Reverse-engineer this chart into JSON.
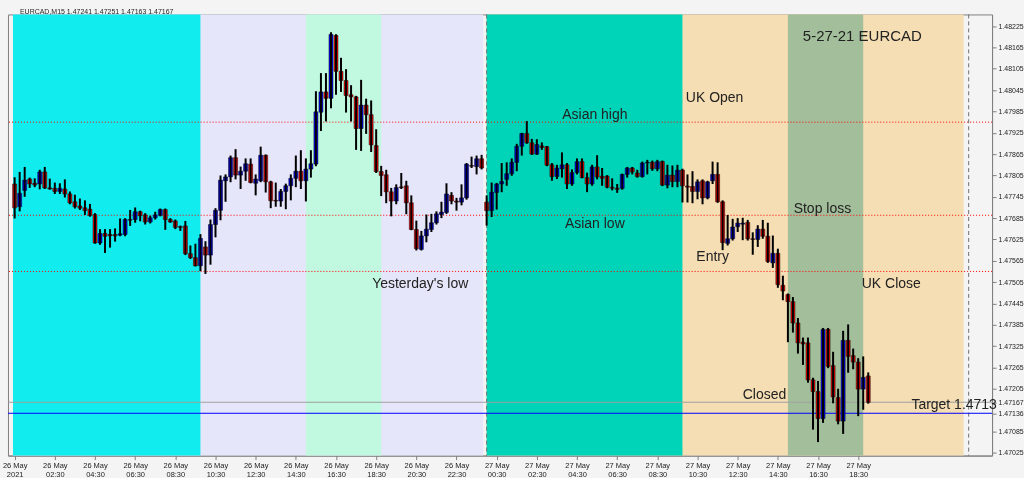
{
  "chart_data": {
    "type": "candlestick",
    "title": "5-27-21  EURCAD",
    "subtitle": "EURCAD,M15  1.47241 1.47251 1.47163 1.47167",
    "x": [
      "2021-05-26T00:30",
      "2021-05-26T00:45",
      "2021-05-26T01:00",
      "2021-05-26T01:15",
      "2021-05-26T01:30",
      "2021-05-26T01:45",
      "2021-05-26T02:00",
      "2021-05-26T02:15",
      "2021-05-26T02:30",
      "2021-05-26T02:45",
      "2021-05-26T03:00",
      "2021-05-26T03:15",
      "2021-05-26T03:30",
      "2021-05-26T03:45",
      "2021-05-26T04:00",
      "2021-05-26T04:15",
      "2021-05-26T04:30",
      "2021-05-26T04:45",
      "2021-05-26T05:00",
      "2021-05-26T05:15",
      "2021-05-26T05:30",
      "2021-05-26T05:45",
      "2021-05-26T06:00",
      "2021-05-26T06:15",
      "2021-05-26T06:30",
      "2021-05-26T06:45",
      "2021-05-26T07:00",
      "2021-05-26T07:15",
      "2021-05-26T07:30",
      "2021-05-26T07:45",
      "2021-05-26T08:00",
      "2021-05-26T08:15",
      "2021-05-26T08:30",
      "2021-05-26T08:45",
      "2021-05-26T09:00",
      "2021-05-26T09:15",
      "2021-05-26T09:30",
      "2021-05-26T09:45",
      "2021-05-26T10:00",
      "2021-05-26T10:15",
      "2021-05-26T10:30",
      "2021-05-26T10:45",
      "2021-05-26T11:00",
      "2021-05-26T11:15",
      "2021-05-26T11:30",
      "2021-05-26T11:45",
      "2021-05-26T12:00",
      "2021-05-26T12:15",
      "2021-05-26T12:30",
      "2021-05-26T12:45",
      "2021-05-26T13:00",
      "2021-05-26T13:15",
      "2021-05-26T13:30",
      "2021-05-26T13:45",
      "2021-05-26T14:00",
      "2021-05-26T14:15",
      "2021-05-26T14:30",
      "2021-05-26T14:45",
      "2021-05-26T15:00",
      "2021-05-26T15:15",
      "2021-05-26T15:30",
      "2021-05-26T15:45",
      "2021-05-26T16:00",
      "2021-05-26T16:15",
      "2021-05-26T16:30",
      "2021-05-26T16:45",
      "2021-05-26T17:00",
      "2021-05-26T17:15",
      "2021-05-26T17:30",
      "2021-05-26T17:45",
      "2021-05-26T18:00",
      "2021-05-26T18:15",
      "2021-05-26T18:30",
      "2021-05-26T18:45",
      "2021-05-26T19:00",
      "2021-05-26T19:15",
      "2021-05-26T19:30",
      "2021-05-26T19:45",
      "2021-05-26T20:00",
      "2021-05-26T20:15",
      "2021-05-26T20:30",
      "2021-05-26T20:45",
      "2021-05-26T21:00",
      "2021-05-26T21:15",
      "2021-05-26T21:30",
      "2021-05-26T21:45",
      "2021-05-26T22:00",
      "2021-05-26T22:15",
      "2021-05-26T22:30",
      "2021-05-26T22:45",
      "2021-05-26T23:00",
      "2021-05-26T23:15",
      "2021-05-26T23:30",
      "2021-05-26T23:45",
      "2021-05-27T00:00",
      "2021-05-27T00:15",
      "2021-05-27T00:30",
      "2021-05-27T00:45",
      "2021-05-27T01:00",
      "2021-05-27T01:15",
      "2021-05-27T01:30",
      "2021-05-27T01:45",
      "2021-05-27T02:00",
      "2021-05-27T02:15",
      "2021-05-27T02:30",
      "2021-05-27T02:45",
      "2021-05-27T03:00",
      "2021-05-27T03:15",
      "2021-05-27T03:30",
      "2021-05-27T03:45",
      "2021-05-27T04:00",
      "2021-05-27T04:15",
      "2021-05-27T04:30",
      "2021-05-27T04:45",
      "2021-05-27T05:00",
      "2021-05-27T05:15",
      "2021-05-27T05:30",
      "2021-05-27T05:45",
      "2021-05-27T06:00",
      "2021-05-27T06:15",
      "2021-05-27T06:30",
      "2021-05-27T06:45",
      "2021-05-27T07:00",
      "2021-05-27T07:15",
      "2021-05-27T07:30",
      "2021-05-27T07:45",
      "2021-05-27T08:00",
      "2021-05-27T08:15",
      "2021-05-27T08:30",
      "2021-05-27T08:45",
      "2021-05-27T09:00",
      "2021-05-27T09:15",
      "2021-05-27T09:30",
      "2021-05-27T09:45",
      "2021-05-27T10:00",
      "2021-05-27T10:15",
      "2021-05-27T10:30",
      "2021-05-27T10:45",
      "2021-05-27T11:00",
      "2021-05-27T11:15",
      "2021-05-27T11:30",
      "2021-05-27T11:45",
      "2021-05-27T12:00",
      "2021-05-27T12:15",
      "2021-05-27T12:30",
      "2021-05-27T12:45",
      "2021-05-27T13:00",
      "2021-05-27T13:15",
      "2021-05-27T13:30",
      "2021-05-27T13:45",
      "2021-05-27T14:00",
      "2021-05-27T14:15",
      "2021-05-27T14:30",
      "2021-05-27T14:45",
      "2021-05-27T15:00",
      "2021-05-27T15:15",
      "2021-05-27T15:30",
      "2021-05-27T15:45",
      "2021-05-27T16:00",
      "2021-05-27T16:15",
      "2021-05-27T16:30",
      "2021-05-27T16:45",
      "2021-05-27T17:00",
      "2021-05-27T17:15",
      "2021-05-27T17:30",
      "2021-05-27T17:45",
      "2021-05-27T18:00",
      "2021-05-27T18:15",
      "2021-05-27T18:30",
      "2021-05-27T18:45",
      "2021-05-27T19:00"
    ],
    "ohlc": [
      [
        1.47781,
        1.478,
        1.47684,
        1.47714
      ],
      [
        1.47717,
        1.47815,
        1.47704,
        1.47755
      ],
      [
        1.47763,
        1.47829,
        1.47745,
        1.47792
      ],
      [
        1.47795,
        1.47799,
        1.4777,
        1.47781
      ],
      [
        1.47783,
        1.47797,
        1.47772,
        1.47778
      ],
      [
        1.47781,
        1.47821,
        1.47766,
        1.47815
      ],
      [
        1.47815,
        1.47829,
        1.47767,
        1.4777
      ],
      [
        1.4777,
        1.47796,
        1.47765,
        1.47767
      ],
      [
        1.47769,
        1.47785,
        1.47753,
        1.4776
      ],
      [
        1.4776,
        1.47783,
        1.47753,
        1.47769
      ],
      [
        1.47767,
        1.47794,
        1.47743,
        1.47753
      ],
      [
        1.47753,
        1.4776,
        1.47724,
        1.47728
      ],
      [
        1.47731,
        1.47751,
        1.47712,
        1.47717
      ],
      [
        1.47719,
        1.4774,
        1.47708,
        1.47713
      ],
      [
        1.47714,
        1.47735,
        1.47694,
        1.47706
      ],
      [
        1.4771,
        1.47725,
        1.47689,
        1.47692
      ],
      [
        1.47695,
        1.47699,
        1.47613,
        1.47615
      ],
      [
        1.47615,
        1.47654,
        1.4761,
        1.47642
      ],
      [
        1.47642,
        1.47654,
        1.47587,
        1.47634
      ],
      [
        1.47639,
        1.47654,
        1.47602,
        1.47635
      ],
      [
        1.47639,
        1.47656,
        1.47619,
        1.47635
      ],
      [
        1.47637,
        1.47684,
        1.47634,
        1.47641
      ],
      [
        1.47639,
        1.47685,
        1.47634,
        1.47681
      ],
      [
        1.47681,
        1.47708,
        1.47663,
        1.47679
      ],
      [
        1.47681,
        1.47715,
        1.47672,
        1.47703
      ],
      [
        1.47703,
        1.47706,
        1.47676,
        1.47692
      ],
      [
        1.47694,
        1.47699,
        1.47667,
        1.47674
      ],
      [
        1.47674,
        1.47692,
        1.4767,
        1.47686
      ],
      [
        1.47686,
        1.47703,
        1.47681,
        1.47694
      ],
      [
        1.47693,
        1.47712,
        1.4769,
        1.47709
      ],
      [
        1.47709,
        1.47712,
        1.47652,
        1.47681
      ],
      [
        1.47681,
        1.47685,
        1.47672,
        1.47674
      ],
      [
        1.47677,
        1.47681,
        1.47654,
        1.47659
      ],
      [
        1.47661,
        1.47664,
        1.47649,
        1.47659
      ],
      [
        1.47663,
        1.47677,
        1.47581,
        1.47585
      ],
      [
        1.47585,
        1.47608,
        1.4757,
        1.47574
      ],
      [
        1.47574,
        1.47613,
        1.47549,
        1.47551
      ],
      [
        1.47551,
        1.4764,
        1.47536,
        1.47628
      ],
      [
        1.47604,
        1.4762,
        1.47528,
        1.47581
      ],
      [
        1.47581,
        1.47681,
        1.47554,
        1.47667
      ],
      [
        1.47667,
        1.47713,
        1.47631,
        1.47707
      ],
      [
        1.47707,
        1.47805,
        1.47679,
        1.47792
      ],
      [
        1.4779,
        1.47808,
        1.47731,
        1.47801
      ],
      [
        1.47801,
        1.47861,
        1.47786,
        1.47855
      ],
      [
        1.47855,
        1.47879,
        1.47794,
        1.47806
      ],
      [
        1.47806,
        1.4783,
        1.47767,
        1.47817
      ],
      [
        1.47817,
        1.47853,
        1.4779,
        1.47838
      ],
      [
        1.47837,
        1.47853,
        1.47783,
        1.47785
      ],
      [
        1.47783,
        1.47808,
        1.47749,
        1.47795
      ],
      [
        1.4779,
        1.47886,
        1.47786,
        1.47862
      ],
      [
        1.47862,
        1.47864,
        1.47757,
        1.47787
      ],
      [
        1.47787,
        1.4779,
        1.47713,
        1.47734
      ],
      [
        1.47735,
        1.47785,
        1.47717,
        1.47733
      ],
      [
        1.47733,
        1.47767,
        1.47717,
        1.4776
      ],
      [
        1.4776,
        1.47782,
        1.4771,
        1.47776
      ],
      [
        1.47776,
        1.47808,
        1.47735,
        1.47797
      ],
      [
        1.47797,
        1.47861,
        1.47772,
        1.47817
      ],
      [
        1.47817,
        1.47876,
        1.47767,
        1.4779
      ],
      [
        1.4779,
        1.47853,
        1.47732,
        1.47823
      ],
      [
        1.47823,
        1.47876,
        1.47799,
        1.47838
      ],
      [
        1.47837,
        1.48042,
        1.47831,
        1.47984
      ],
      [
        1.47983,
        1.48093,
        1.4793,
        1.4804
      ],
      [
        1.4804,
        1.48093,
        1.47957,
        1.48022
      ],
      [
        1.48022,
        1.48208,
        1.47994,
        1.48202
      ],
      [
        1.48199,
        1.48202,
        1.48032,
        1.48098
      ],
      [
        1.48098,
        1.48136,
        1.4804,
        1.48072
      ],
      [
        1.48072,
        1.48104,
        1.47982,
        1.4803
      ],
      [
        1.48032,
        1.48059,
        1.47957,
        1.48026
      ],
      [
        1.48026,
        1.48029,
        1.47877,
        1.47937
      ],
      [
        1.47937,
        1.48074,
        1.47874,
        1.48003
      ],
      [
        1.48003,
        1.48021,
        1.47922,
        1.47976
      ],
      [
        1.47976,
        1.48016,
        1.47871,
        1.47891
      ],
      [
        1.47889,
        1.47935,
        1.47812,
        1.47816
      ],
      [
        1.47816,
        1.47832,
        1.47747,
        1.47805
      ],
      [
        1.47807,
        1.47821,
        1.47727,
        1.47759
      ],
      [
        1.47759,
        1.4777,
        1.4769,
        1.47733
      ],
      [
        1.47733,
        1.4778,
        1.47724,
        1.47771
      ],
      [
        1.47773,
        1.47812,
        1.47767,
        1.47771
      ],
      [
        1.47776,
        1.4779,
        1.47696,
        1.47728
      ],
      [
        1.47728,
        1.47749,
        1.47651,
        1.47653
      ],
      [
        1.47653,
        1.47678,
        1.47594,
        1.47599
      ],
      [
        1.47597,
        1.47649,
        1.47594,
        1.47635
      ],
      [
        1.47635,
        1.47695,
        1.47617,
        1.47654
      ],
      [
        1.47653,
        1.47697,
        1.47646,
        1.47672
      ],
      [
        1.47672,
        1.47704,
        1.47667,
        1.47697
      ],
      [
        1.47695,
        1.47731,
        1.47685,
        1.47702
      ],
      [
        1.47701,
        1.47783,
        1.47697,
        1.47753
      ],
      [
        1.47749,
        1.47758,
        1.47724,
        1.47733
      ],
      [
        1.47733,
        1.47742,
        1.47706,
        1.4773
      ],
      [
        1.4773,
        1.4778,
        1.47721,
        1.47742
      ],
      [
        1.47742,
        1.4784,
        1.47737,
        1.47837
      ],
      [
        1.47833,
        1.47858,
        1.47826,
        1.47831
      ],
      [
        1.4783,
        1.47861,
        1.47808,
        1.47852
      ],
      [
        1.47852,
        1.47863,
        1.47822,
        1.47826
      ],
      [
        1.4773,
        1.47749,
        1.47664,
        1.47706
      ],
      [
        1.47706,
        1.47785,
        1.47688,
        1.47758
      ],
      [
        1.47757,
        1.47784,
        1.47709,
        1.47781
      ],
      [
        1.47781,
        1.4784,
        1.47758,
        1.47788
      ],
      [
        1.47794,
        1.47842,
        1.47776,
        1.4781
      ],
      [
        1.4781,
        1.47853,
        1.47804,
        1.47842
      ],
      [
        1.47842,
        1.47894,
        1.47817,
        1.47887
      ],
      [
        1.47887,
        1.47925,
        1.47861,
        1.47923
      ],
      [
        1.47923,
        1.47958,
        1.47894,
        1.47897
      ],
      [
        1.47897,
        1.47908,
        1.47863,
        1.47865
      ],
      [
        1.47865,
        1.47907,
        1.47863,
        1.47892
      ],
      [
        1.47888,
        1.47898,
        1.47877,
        1.47884
      ],
      [
        1.47886,
        1.47888,
        1.47831,
        1.47834
      ],
      [
        1.47835,
        1.4784,
        1.4779,
        1.47802
      ],
      [
        1.47802,
        1.47835,
        1.47795,
        1.47826
      ],
      [
        1.47824,
        1.4787,
        1.47799,
        1.47835
      ],
      [
        1.47835,
        1.4784,
        1.47767,
        1.47781
      ],
      [
        1.47781,
        1.47822,
        1.47776,
        1.47813
      ],
      [
        1.47813,
        1.47853,
        1.47808,
        1.47844
      ],
      [
        1.47844,
        1.47853,
        1.47797,
        1.47799
      ],
      [
        1.47799,
        1.47813,
        1.47758,
        1.47781
      ],
      [
        1.47781,
        1.47835,
        1.47776,
        1.47829
      ],
      [
        1.47829,
        1.47862,
        1.47794,
        1.47801
      ],
      [
        1.47803,
        1.47826,
        1.47776,
        1.47797
      ],
      [
        1.47803,
        1.47806,
        1.47769,
        1.47772
      ],
      [
        1.47772,
        1.47797,
        1.47763,
        1.47769
      ],
      [
        1.47769,
        1.47781,
        1.47756,
        1.47766
      ],
      [
        1.47769,
        1.4781,
        1.47765,
        1.47808
      ],
      [
        1.47808,
        1.47829,
        1.47799,
        1.47826
      ],
      [
        1.47826,
        1.47829,
        1.47808,
        1.47815
      ],
      [
        1.47812,
        1.47821,
        1.47799,
        1.47802
      ],
      [
        1.47802,
        1.47844,
        1.47799,
        1.4784
      ],
      [
        1.4784,
        1.47849,
        1.47808,
        1.47842
      ],
      [
        1.47842,
        1.47847,
        1.47818,
        1.47824
      ],
      [
        1.47824,
        1.47849,
        1.47817,
        1.47844
      ],
      [
        1.47844,
        1.47847,
        1.47775,
        1.47778
      ],
      [
        1.47778,
        1.47835,
        1.47769,
        1.47806
      ],
      [
        1.47806,
        1.47833,
        1.47772,
        1.47788
      ],
      [
        1.47788,
        1.47835,
        1.47772,
        1.4782
      ],
      [
        1.4782,
        1.47824,
        1.47729,
        1.47776
      ],
      [
        1.47775,
        1.47808,
        1.47729,
        1.47772
      ],
      [
        1.47774,
        1.47817,
        1.47727,
        1.4776
      ],
      [
        1.4776,
        1.47794,
        1.47738,
        1.47787
      ],
      [
        1.4779,
        1.47794,
        1.47724,
        1.47742
      ],
      [
        1.47742,
        1.4779,
        1.47738,
        1.47787
      ],
      [
        1.4779,
        1.47844,
        1.47781,
        1.47808
      ],
      [
        1.47808,
        1.47842,
        1.47728,
        1.47731
      ],
      [
        1.47731,
        1.47735,
        1.47595,
        1.47616
      ],
      [
        1.47614,
        1.47694,
        1.47608,
        1.47627
      ],
      [
        1.47627,
        1.47683,
        1.47622,
        1.4766
      ],
      [
        1.47661,
        1.47685,
        1.47646,
        1.47671
      ],
      [
        1.47668,
        1.47686,
        1.47623,
        1.47671
      ],
      [
        1.47673,
        1.4768,
        1.47622,
        1.47627
      ],
      [
        1.47627,
        1.47645,
        1.47582,
        1.47625
      ],
      [
        1.47625,
        1.47665,
        1.47604,
        1.47654
      ],
      [
        1.47654,
        1.4768,
        1.47627,
        1.47634
      ],
      [
        1.47634,
        1.47672,
        1.47559,
        1.47563
      ],
      [
        1.47559,
        1.47636,
        1.47545,
        1.47586
      ],
      [
        1.47586,
        1.47599,
        1.47489,
        1.47498
      ],
      [
        1.47496,
        1.47523,
        1.47454,
        1.4748
      ],
      [
        1.4747,
        1.47473,
        1.47336,
        1.4745
      ],
      [
        1.4745,
        1.47463,
        1.47363,
        1.4739
      ],
      [
        1.4739,
        1.47404,
        1.47304,
        1.47334
      ],
      [
        1.47336,
        1.47349,
        1.47272,
        1.47331
      ],
      [
        1.47334,
        1.47349,
        1.47222,
        1.4723
      ],
      [
        1.4723,
        1.47236,
        1.4709,
        1.47197
      ],
      [
        1.47197,
        1.47227,
        1.47055,
        1.47121
      ],
      [
        1.47121,
        1.47376,
        1.47109,
        1.47372
      ],
      [
        1.47372,
        1.47376,
        1.47263,
        1.47268
      ],
      [
        1.4727,
        1.47309,
        1.47164,
        1.47182
      ],
      [
        1.4718,
        1.47205,
        1.47105,
        1.47114
      ],
      [
        1.47114,
        1.47368,
        1.47078,
        1.47341
      ],
      [
        1.47341,
        1.47386,
        1.4725,
        1.47296
      ],
      [
        1.47298,
        1.47318,
        1.4726,
        1.4728
      ],
      [
        1.4728,
        1.47291,
        1.47128,
        1.47204
      ],
      [
        1.47204,
        1.47296,
        1.47146,
        1.47237
      ],
      [
        1.47241,
        1.47251,
        1.47163,
        1.47167
      ]
    ],
    "colors": [
      "#ff0000",
      "#0000ff",
      "#0000ff",
      "#ff0000",
      "#ff0000",
      "#0000ff",
      "#ff0000",
      "#ff0000",
      "#ff0000",
      "#0000ff",
      "#ff0000",
      "#ff0000",
      "#ff0000",
      "#ff0000",
      "#ff0000",
      "#ff0000",
      "#ff0000",
      "#0000ff",
      "#ff0000",
      "#ff0000",
      "#ff0000",
      "#0000ff",
      "#0000ff",
      "#ff0000",
      "#0000ff",
      "#ff0000",
      "#ff0000",
      "#0000ff",
      "#0000ff",
      "#0000ff",
      "#ff0000",
      "#ff0000",
      "#ff0000",
      "#ff0000",
      "#ff0000",
      "#ff0000",
      "#ff0000",
      "#0000ff",
      "#ff0000",
      "#0000ff",
      "#0000ff",
      "#0000ff",
      "#0000ff",
      "#0000ff",
      "#ff0000",
      "#0000ff",
      "#0000ff",
      "#ff0000",
      "#0000ff",
      "#0000ff",
      "#ff0000",
      "#ff0000",
      "#ff0000",
      "#0000ff",
      "#0000ff",
      "#0000ff",
      "#0000ff",
      "#ff0000",
      "#0000ff",
      "#0000ff",
      "#0000ff",
      "#0000ff",
      "#ff0000",
      "#0000ff",
      "#ff0000",
      "#ff0000",
      "#ff0000",
      "#ff0000",
      "#ff0000",
      "#0000ff",
      "#ff0000",
      "#ff0000",
      "#ff0000",
      "#ff0000",
      "#ff0000",
      "#ff0000",
      "#0000ff",
      "#ff0000",
      "#ff0000",
      "#ff0000",
      "#ff0000",
      "#0000ff",
      "#0000ff",
      "#0000ff",
      "#0000ff",
      "#0000ff",
      "#0000ff",
      "#ff0000",
      "#ff0000",
      "#0000ff",
      "#0000ff",
      "#ff0000",
      "#0000ff",
      "#ff0000",
      "#ff0000",
      "#0000ff",
      "#0000ff",
      "#0000ff",
      "#0000ff",
      "#0000ff",
      "#0000ff",
      "#0000ff",
      "#ff0000",
      "#ff0000",
      "#0000ff",
      "#ff0000",
      "#ff0000",
      "#ff0000",
      "#0000ff",
      "#0000ff",
      "#ff0000",
      "#0000ff",
      "#0000ff",
      "#ff0000",
      "#ff0000",
      "#0000ff",
      "#ff0000",
      "#ff0000",
      "#ff0000",
      "#ff0000",
      "#ff0000",
      "#0000ff",
      "#0000ff",
      "#ff0000",
      "#ff0000",
      "#0000ff",
      "#0000ff",
      "#ff0000",
      "#0000ff",
      "#ff0000",
      "#0000ff",
      "#ff0000",
      "#0000ff",
      "#ff0000",
      "#ff0000",
      "#ff0000",
      "#0000ff",
      "#ff0000",
      "#0000ff",
      "#0000ff",
      "#ff0000",
      "#ff0000",
      "#0000ff",
      "#0000ff",
      "#0000ff",
      "#0000ff",
      "#ff0000",
      "#ff0000",
      "#0000ff",
      "#ff0000",
      "#ff0000",
      "#0000ff",
      "#ff0000",
      "#ff0000",
      "#ff0000",
      "#ff0000",
      "#ff0000",
      "#ff0000",
      "#ff0000",
      "#ff0000",
      "#ff0000",
      "#0000ff",
      "#ff0000",
      "#ff0000",
      "#ff0000",
      "#0000ff",
      "#ff0000",
      "#ff0000",
      "#ff0000",
      "#0000ff",
      "#ff0000"
    ],
    "xlim": [
      "2021-05-26T00:25",
      "2021-05-28T00:55"
    ],
    "xticks": [
      {
        "value": "2021-05-26T00:30",
        "label": "26 May 2021"
      },
      {
        "value": "2021-05-26T02:30",
        "label": "26 May 02:30"
      },
      {
        "value": "2021-05-26T04:30",
        "label": "26 May 04:30"
      },
      {
        "value": "2021-05-26T06:30",
        "label": "26 May 06:30"
      },
      {
        "value": "2021-05-26T08:30",
        "label": "26 May 08:30"
      },
      {
        "value": "2021-05-26T10:30",
        "label": "26 May 10:30"
      },
      {
        "value": "2021-05-26T12:30",
        "label": "26 May 12:30"
      },
      {
        "value": "2021-05-26T14:30",
        "label": "26 May 14:30"
      },
      {
        "value": "2021-05-26T16:30",
        "label": "26 May 16:30"
      },
      {
        "value": "2021-05-26T18:30",
        "label": "26 May 18:30"
      },
      {
        "value": "2021-05-26T20:30",
        "label": "26 May 20:30"
      },
      {
        "value": "2021-05-26T22:30",
        "label": "26 May 22:30"
      },
      {
        "value": "2021-05-27T00:30",
        "label": "27 May 00:30"
      },
      {
        "value": "2021-05-27T02:30",
        "label": "27 May 02:30"
      },
      {
        "value": "2021-05-27T04:30",
        "label": "27 May 04:30"
      },
      {
        "value": "2021-05-27T06:30",
        "label": "27 May 06:30"
      },
      {
        "value": "2021-05-27T08:30",
        "label": "27 May 08:30"
      },
      {
        "value": "2021-05-27T10:30",
        "label": "27 May 10:30"
      },
      {
        "value": "2021-05-27T12:30",
        "label": "27 May 12:30"
      },
      {
        "value": "2021-05-27T14:30",
        "label": "27 May 14:30"
      },
      {
        "value": "2021-05-27T16:30",
        "label": "27 May 16:30"
      },
      {
        "value": "2021-05-27T18:30",
        "label": "27 May 18:30"
      }
    ],
    "ylim": [
      1.47017,
      1.48258
    ],
    "yticks": [
      1.48225,
      1.48165,
      1.48105,
      1.48045,
      1.47985,
      1.47925,
      1.47865,
      1.47805,
      1.47745,
      1.47685,
      1.47625,
      1.47565,
      1.47505,
      1.47445,
      1.47385,
      1.47325,
      1.47265,
      1.47205,
      1.47167,
      1.47136,
      1.47085,
      1.47025
    ],
    "bands": [
      {
        "axis": "x",
        "from": "2021-05-26T00:25",
        "to": "2021-05-26T23:50",
        "color": "#e6e6fa"
      },
      {
        "axis": "x",
        "from": "2021-05-27T00:00",
        "to": "2021-05-27T23:45",
        "color": "#f5deb3"
      },
      {
        "axis": "x",
        "from": "2021-05-26T00:25",
        "to": "2021-05-26T09:45",
        "color": "#11edef"
      },
      {
        "axis": "x",
        "from": "2021-05-26T15:00",
        "to": "2021-05-26T18:45",
        "color": "#c0f8e0"
      },
      {
        "axis": "x",
        "from": "2021-05-27T00:00",
        "to": "2021-05-27T09:45",
        "color": "#00d4b8"
      },
      {
        "axis": "x",
        "from": "2021-05-27T15:00",
        "to": "2021-05-27T18:45",
        "color": "#a3be9a"
      }
    ],
    "ref_lines": [
      {
        "axis": "x",
        "value": "2021-05-27T00:00",
        "color": "#707070",
        "line_style": "dashed"
      },
      {
        "axis": "x",
        "value": "2021-05-28T00:00",
        "color": "#707070",
        "line_style": "dashed"
      },
      {
        "axis": "y",
        "value": 1.47955,
        "color": "#ff0000",
        "line_style": "dotted"
      },
      {
        "axis": "y",
        "value": 1.47693,
        "color": "#ff0000",
        "line_style": "dotted"
      },
      {
        "axis": "y",
        "value": 1.47535,
        "color": "#ff0000",
        "line_style": "dotted"
      },
      {
        "axis": "y",
        "value": 1.47167,
        "color": "#a0a0a0",
        "line_style": "solid"
      },
      {
        "axis": "y",
        "value": 1.47136,
        "color": "#0000ff",
        "line_style": "solid"
      }
    ],
    "annotations": [
      "Asian high",
      "Asian low",
      "Yesterday's low",
      "UK Open",
      "Stop loss",
      "Entry",
      "UK Close",
      "Closed",
      "Target  1.4713"
    ]
  }
}
